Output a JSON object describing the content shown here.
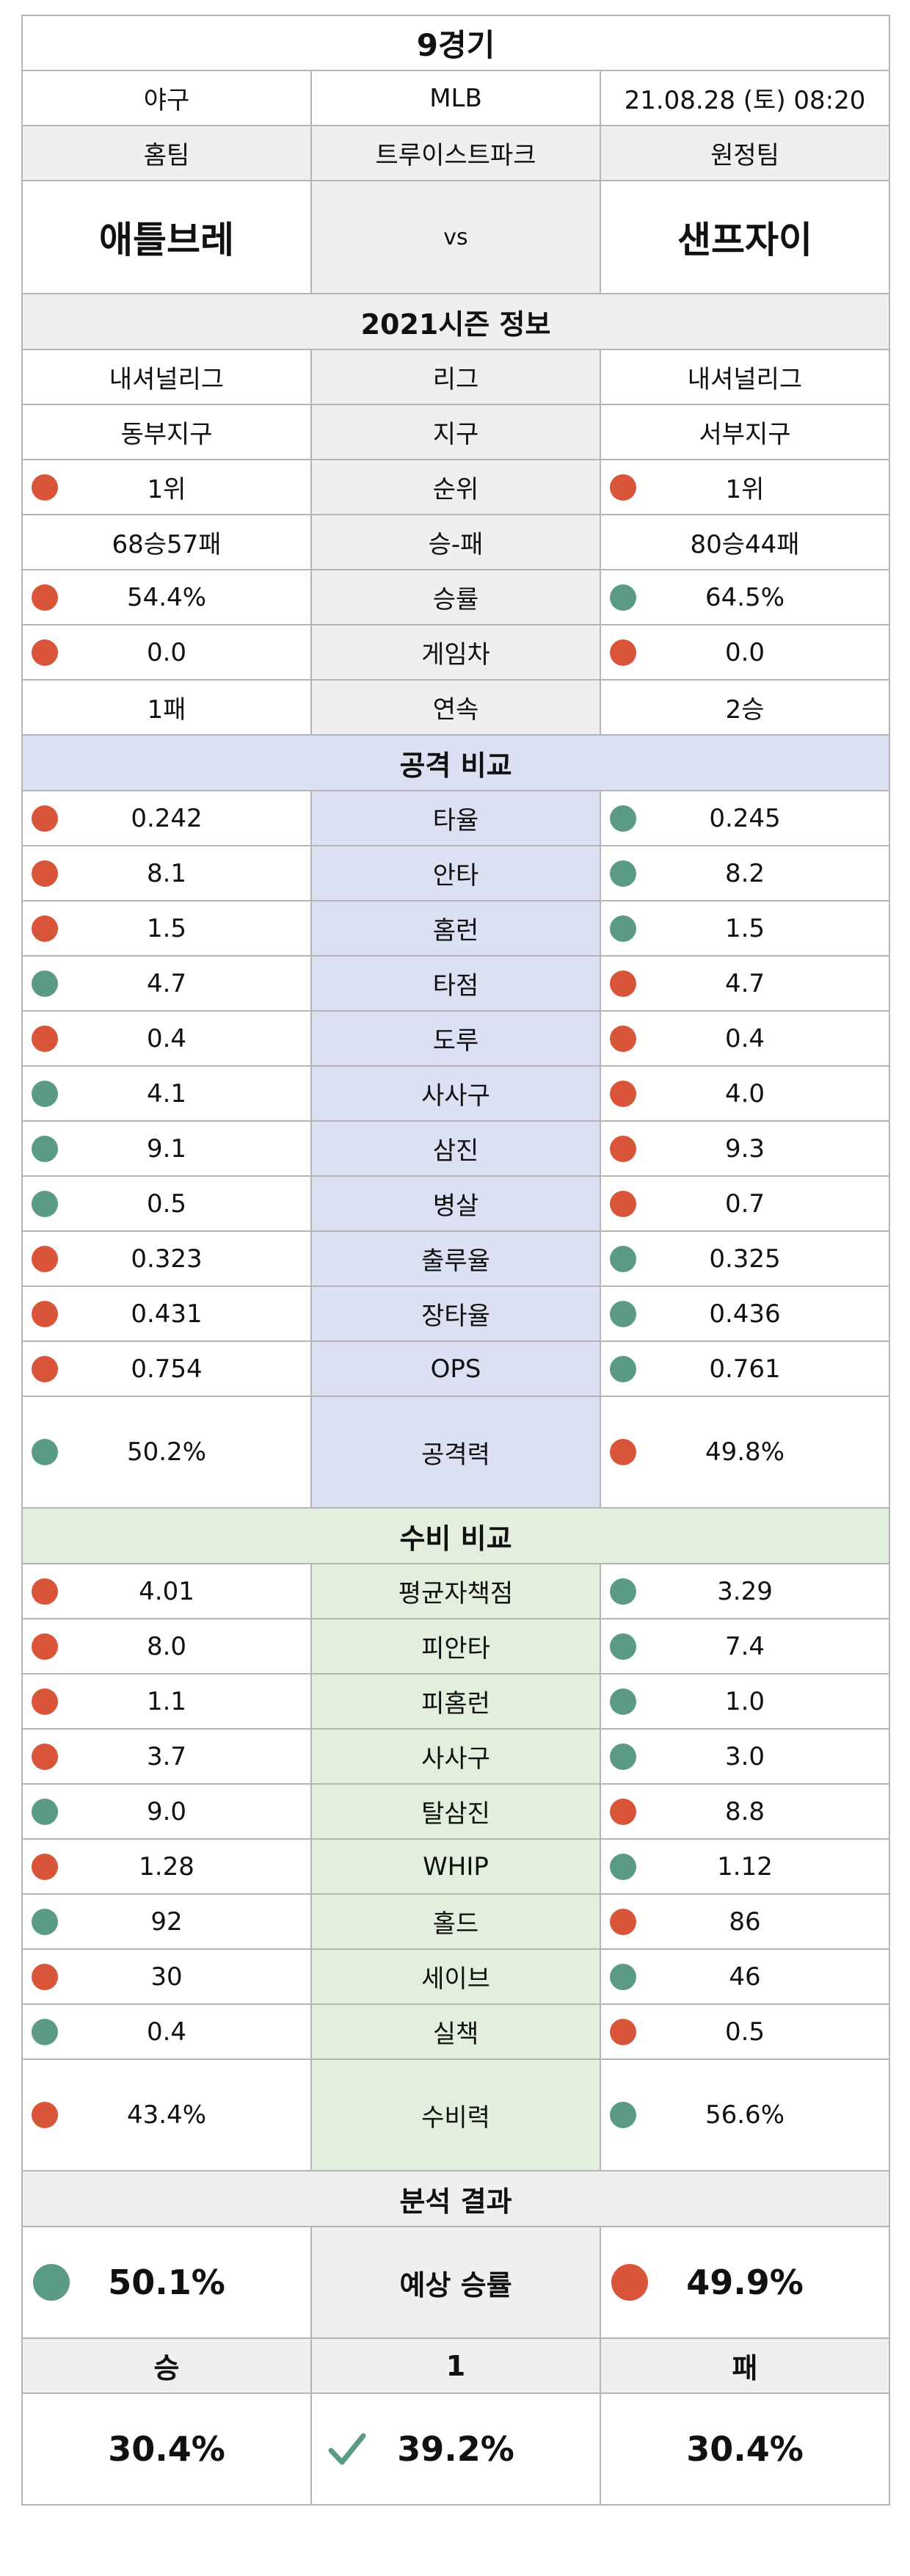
{
  "game": {
    "title": "9경기",
    "sport": "야구",
    "league": "MLB",
    "datetime": "21.08.28 (토) 08:20"
  },
  "teams": {
    "home_label": "홈팀",
    "stadium": "트루이스트파크",
    "away_label": "원정팀",
    "home": "애틀브레",
    "vs": "vs",
    "away": "샌프자이"
  },
  "season": {
    "header": "2021시즌 정보",
    "rows": [
      {
        "label": "리그",
        "home": "내셔널리그",
        "away": "내셔널리그"
      },
      {
        "label": "지구",
        "home": "동부지구",
        "away": "서부지구"
      },
      {
        "label": "순위",
        "home": "1위",
        "away": "1위",
        "home_dot": "red",
        "away_dot": "red"
      },
      {
        "label": "승-패",
        "home": "68승57패",
        "away": "80승44패"
      },
      {
        "label": "승률",
        "home": "54.4%",
        "away": "64.5%",
        "home_dot": "red",
        "away_dot": "teal"
      },
      {
        "label": "게임차",
        "home": "0.0",
        "away": "0.0",
        "home_dot": "red",
        "away_dot": "red"
      },
      {
        "label": "연속",
        "home": "1패",
        "away": "2승"
      }
    ]
  },
  "attack": {
    "header": "공격 비교",
    "rows": [
      {
        "label": "타율",
        "home": "0.242",
        "away": "0.245",
        "home_dot": "red",
        "away_dot": "teal"
      },
      {
        "label": "안타",
        "home": "8.1",
        "away": "8.2",
        "home_dot": "red",
        "away_dot": "teal"
      },
      {
        "label": "홈런",
        "home": "1.5",
        "away": "1.5",
        "home_dot": "red",
        "away_dot": "teal"
      },
      {
        "label": "타점",
        "home": "4.7",
        "away": "4.7",
        "home_dot": "teal",
        "away_dot": "red"
      },
      {
        "label": "도루",
        "home": "0.4",
        "away": "0.4",
        "home_dot": "red",
        "away_dot": "red"
      },
      {
        "label": "사사구",
        "home": "4.1",
        "away": "4.0",
        "home_dot": "teal",
        "away_dot": "red"
      },
      {
        "label": "삼진",
        "home": "9.1",
        "away": "9.3",
        "home_dot": "teal",
        "away_dot": "red"
      },
      {
        "label": "병살",
        "home": "0.5",
        "away": "0.7",
        "home_dot": "teal",
        "away_dot": "red"
      },
      {
        "label": "출루율",
        "home": "0.323",
        "away": "0.325",
        "home_dot": "red",
        "away_dot": "teal"
      },
      {
        "label": "장타율",
        "home": "0.431",
        "away": "0.436",
        "home_dot": "red",
        "away_dot": "teal"
      },
      {
        "label": "OPS",
        "home": "0.754",
        "away": "0.761",
        "home_dot": "red",
        "away_dot": "teal"
      }
    ],
    "total": {
      "label": "공격력",
      "home": "50.2%",
      "away": "49.8%",
      "home_dot": "teal",
      "away_dot": "red"
    }
  },
  "defense": {
    "header": "수비 비교",
    "rows": [
      {
        "label": "평균자책점",
        "home": "4.01",
        "away": "3.29",
        "home_dot": "red",
        "away_dot": "teal"
      },
      {
        "label": "피안타",
        "home": "8.0",
        "away": "7.4",
        "home_dot": "red",
        "away_dot": "teal"
      },
      {
        "label": "피홈런",
        "home": "1.1",
        "away": "1.0",
        "home_dot": "red",
        "away_dot": "teal"
      },
      {
        "label": "사사구",
        "home": "3.7",
        "away": "3.0",
        "home_dot": "red",
        "away_dot": "teal"
      },
      {
        "label": "탈삼진",
        "home": "9.0",
        "away": "8.8",
        "home_dot": "teal",
        "away_dot": "red"
      },
      {
        "label": "WHIP",
        "home": "1.28",
        "away": "1.12",
        "home_dot": "red",
        "away_dot": "teal"
      },
      {
        "label": "홀드",
        "home": "92",
        "away": "86",
        "home_dot": "teal",
        "away_dot": "red"
      },
      {
        "label": "세이브",
        "home": "30",
        "away": "46",
        "home_dot": "red",
        "away_dot": "teal"
      },
      {
        "label": "실책",
        "home": "0.4",
        "away": "0.5",
        "home_dot": "teal",
        "away_dot": "red"
      }
    ],
    "total": {
      "label": "수비력",
      "home": "43.4%",
      "away": "56.6%",
      "home_dot": "red",
      "away_dot": "teal"
    }
  },
  "result": {
    "header": "분석 결과",
    "expected": {
      "label": "예상 승률",
      "home": "50.1%",
      "away": "49.9%",
      "home_dot": "teal",
      "away_dot": "red"
    },
    "outcomes": {
      "win_label": "승",
      "draw_label": "1",
      "loss_label": "패",
      "win": "30.4%",
      "draw": "39.2%",
      "loss": "30.4%"
    }
  },
  "colors": {
    "red": "#d9553a",
    "teal": "#5a9a86",
    "check": "#5a9a86",
    "grey_bg": "#efefef",
    "attack_bg": "#dbe1f3",
    "defense_bg": "#e3efdd"
  }
}
